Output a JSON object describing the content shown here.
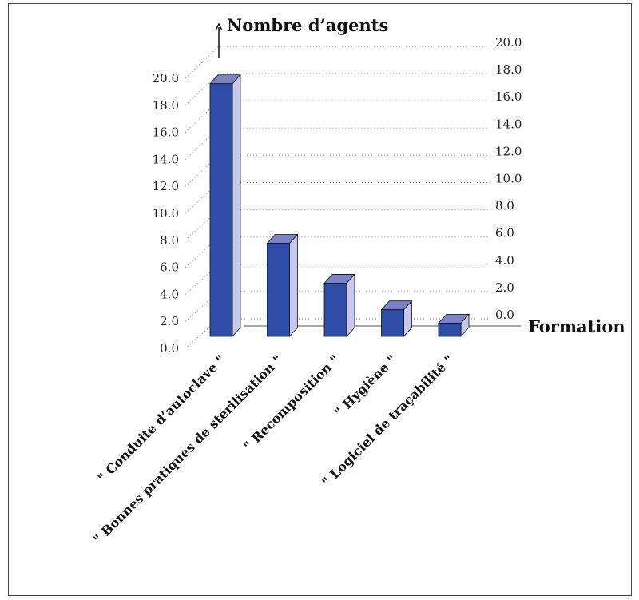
{
  "chart_data": {
    "type": "bar",
    "title": "",
    "xlabel": "Formation",
    "ylabel": "Nombre d’agents",
    "categories": [
      "\" Conduite d’autoclave \"",
      "\" Bonnes pratiques de stérilisation \"",
      "\" Recomposition \"",
      "\" Hygiène \"",
      "\" Logiciel de traçabilité \""
    ],
    "values": [
      19,
      7,
      4,
      2,
      1
    ],
    "ylim": [
      0,
      20
    ],
    "yticks": [
      "0.0",
      "2.0",
      "4.0",
      "6.0",
      "8.0",
      "10.0",
      "12.0",
      "14.0",
      "16.0",
      "18.0",
      "20.0"
    ],
    "grid": true,
    "projection": "3d",
    "colors": {
      "front": "#2e4ea6",
      "top": "#7b82c6",
      "side": "#c8c8ec"
    }
  }
}
